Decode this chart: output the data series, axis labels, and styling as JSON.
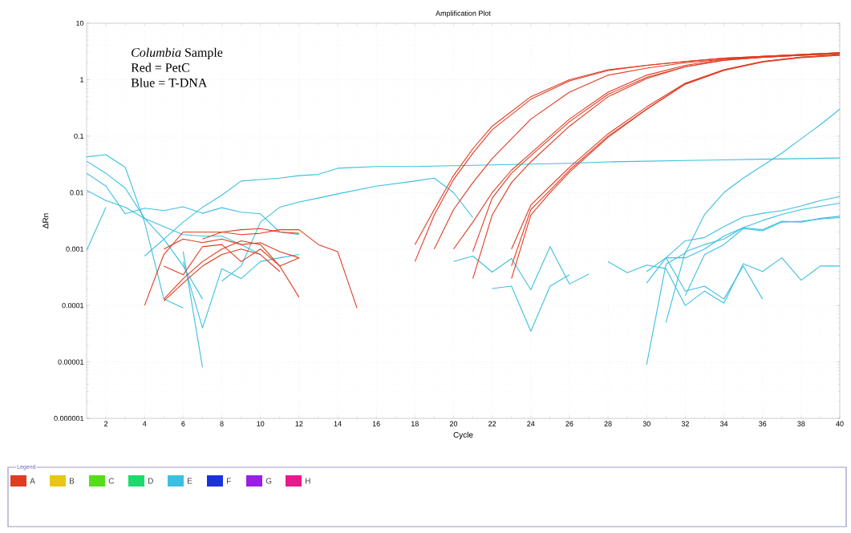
{
  "chart_data": {
    "type": "line",
    "title": "Amplification Plot",
    "xlabel": "Cycle",
    "ylabel": "ΔRn",
    "legend_title": "Legend",
    "annotations": [
      "*Columbia* Sample",
      "Red = PetC",
      "Blue = T-DNA"
    ],
    "xlim": [
      1,
      40
    ],
    "xticks": [
      2,
      4,
      6,
      8,
      10,
      12,
      14,
      16,
      18,
      20,
      22,
      24,
      26,
      28,
      30,
      32,
      34,
      36,
      38,
      40
    ],
    "ylim": [
      1e-06,
      10
    ],
    "yticks": [
      {
        "value": 1e-06,
        "label": "0.000001"
      },
      {
        "value": 1e-05,
        "label": "0.00001"
      },
      {
        "value": 0.0001,
        "label": "0.0001"
      },
      {
        "value": 0.001,
        "label": "0.001"
      },
      {
        "value": 0.01,
        "label": "0.01"
      },
      {
        "value": 0.1,
        "label": "0.1"
      },
      {
        "value": 1,
        "label": "1"
      },
      {
        "value": 10,
        "label": "10"
      }
    ],
    "log": "y",
    "grid": true,
    "legend": "bottom",
    "marker": "none",
    "line_style": "solid",
    "series": [
      {
        "name": "A",
        "color": "#e03c22",
        "x": [
          18,
          19,
          20,
          21,
          22,
          24,
          26,
          28,
          30,
          32,
          34,
          36,
          38,
          40
        ],
        "values": [
          0.0012,
          0.005,
          0.02,
          0.06,
          0.15,
          0.5,
          1.0,
          1.5,
          1.8,
          2.1,
          2.4,
          2.6,
          2.8,
          3.0
        ]
      },
      {
        "name": "B",
        "color": "#e6c619"
      },
      {
        "name": "C",
        "color": "#55dd1a"
      },
      {
        "name": "D",
        "color": "#1ed96e"
      },
      {
        "name": "E",
        "color": "#3cc0e0",
        "x": [
          1,
          2,
          3,
          4,
          5,
          6
        ],
        "values": [
          0.043,
          0.047,
          0.028,
          0.003,
          0.00013,
          9e-05
        ]
      },
      {
        "name": "F",
        "color": "#1a33d9"
      },
      {
        "name": "G",
        "color": "#9b1ee6"
      },
      {
        "name": "H",
        "color": "#e61a8a"
      },
      {
        "color": "#3cc0e0",
        "x": [
          1,
          2,
          3,
          4,
          5,
          6,
          7
        ],
        "values": [
          0.036,
          0.022,
          0.012,
          0.0035,
          0.0015,
          0.0005,
          0.00013
        ]
      },
      {
        "color": "#3cc0e0",
        "x": [
          1,
          2,
          3,
          4,
          5,
          6,
          7,
          8,
          9,
          10,
          11,
          12
        ],
        "values": [
          0.022,
          0.013,
          0.0042,
          0.0053,
          0.0048,
          0.0056,
          0.0043,
          0.0054,
          0.0045,
          0.0042,
          0.002,
          0.0018
        ]
      },
      {
        "color": "#3cc0e0",
        "x": [
          1,
          2,
          3,
          4,
          5,
          6,
          7,
          8,
          9,
          10
        ],
        "values": [
          0.011,
          0.0072,
          0.0055,
          0.0035,
          0.0025,
          0.0018,
          0.0017,
          0.0017,
          0.0012,
          0.0008
        ]
      },
      {
        "color": "#3cc0e0",
        "x": [
          1,
          2
        ],
        "values": [
          0.00095,
          0.0055
        ]
      },
      {
        "color": "#3cc0e0",
        "x": [
          4,
          5,
          6,
          7,
          8,
          9,
          10,
          11,
          12,
          13,
          14,
          16,
          18,
          20,
          22,
          24,
          26,
          28,
          30,
          32,
          34,
          36,
          38,
          40
        ],
        "values": [
          0.00075,
          0.0015,
          0.003,
          0.0055,
          0.009,
          0.016,
          0.017,
          0.018,
          0.02,
          0.021,
          0.027,
          0.029,
          0.029,
          0.03,
          0.031,
          0.032,
          0.033,
          0.035,
          0.036,
          0.037,
          0.038,
          0.039,
          0.04,
          0.041
        ]
      },
      {
        "color": "#3cc0e0",
        "x": [
          8,
          9,
          10,
          11,
          12,
          13,
          14,
          16,
          18,
          19,
          20,
          21
        ],
        "values": [
          0.00027,
          0.0005,
          0.003,
          0.0055,
          0.0068,
          0.008,
          0.0095,
          0.013,
          0.016,
          0.018,
          0.01,
          0.0036
        ]
      },
      {
        "color": "#3cc0e0",
        "x": [
          6,
          7
        ],
        "values": [
          0.0009,
          8e-06
        ]
      },
      {
        "color": "#3cc0e0",
        "x": [
          6,
          7,
          8,
          9,
          10,
          11,
          12
        ],
        "values": [
          0.0006,
          4e-05,
          0.00045,
          0.0003,
          0.0006,
          0.0007,
          0.0008
        ]
      },
      {
        "color": "#3cc0e0",
        "x": [
          20,
          21,
          22,
          23,
          24,
          25,
          26,
          27
        ],
        "values": [
          0.0006,
          0.00075,
          0.00039,
          0.00068,
          0.00019,
          0.0011,
          0.00024,
          0.00036
        ]
      },
      {
        "color": "#3cc0e0",
        "x": [
          22,
          23,
          24,
          25,
          26
        ],
        "values": [
          0.0002,
          0.00022,
          3.5e-05,
          0.00022,
          0.00035
        ]
      },
      {
        "color": "#3cc0e0",
        "x": [
          28,
          29,
          30,
          31,
          32,
          33,
          34,
          35,
          36,
          37,
          38,
          39,
          40
        ],
        "values": [
          0.0006,
          0.00038,
          0.00052,
          0.00045,
          0.0001,
          0.00018,
          0.00011,
          0.00055,
          0.0004,
          0.0007,
          0.00028,
          0.0005,
          0.0005
        ]
      },
      {
        "color": "#3cc0e0",
        "x": [
          31,
          32,
          33,
          34,
          35,
          36
        ],
        "values": [
          0.0007,
          0.00018,
          0.00022,
          0.00013,
          0.0005,
          0.00013
        ]
      },
      {
        "color": "#3cc0e0",
        "x": [
          30,
          31,
          32,
          33,
          34,
          35,
          36,
          37,
          38,
          39,
          40
        ],
        "values": [
          9e-06,
          0.00054,
          0.00085,
          0.0041,
          0.01,
          0.018,
          0.03,
          0.05,
          0.09,
          0.16,
          0.3
        ]
      },
      {
        "color": "#3cc0e0",
        "x": [
          30,
          31,
          32,
          33,
          34,
          35,
          36,
          37,
          38,
          39,
          40
        ],
        "values": [
          0.0004,
          0.0007,
          0.0014,
          0.0016,
          0.0025,
          0.0037,
          0.0043,
          0.0048,
          0.0058,
          0.0072,
          0.0085
        ]
      },
      {
        "color": "#3cc0e0",
        "x": [
          30,
          31,
          32,
          33,
          34,
          35,
          36,
          37,
          38,
          39,
          40
        ],
        "values": [
          0.00025,
          0.0007,
          0.0007,
          0.001,
          0.0017,
          0.0024,
          0.0032,
          0.0041,
          0.005,
          0.0057,
          0.0065
        ]
      },
      {
        "color": "#3cc0e0",
        "x": [
          31,
          32,
          33,
          34,
          35,
          36,
          37,
          38,
          39,
          40
        ],
        "values": [
          5e-05,
          0.0009,
          0.0012,
          0.0015,
          0.0024,
          0.0022,
          0.0031,
          0.003,
          0.0035,
          0.0038
        ]
      },
      {
        "color": "#3cc0e0",
        "x": [
          32,
          33,
          34,
          35,
          36,
          37,
          38,
          39,
          40
        ],
        "values": [
          0.00015,
          0.0008,
          0.0012,
          0.0023,
          0.0021,
          0.003,
          0.0031,
          0.0034,
          0.0036
        ]
      },
      {
        "color": "#e03c22",
        "x": [
          4,
          5,
          6,
          7,
          8,
          9,
          10,
          11,
          12
        ],
        "values": [
          0.0001,
          0.0008,
          0.002,
          0.002,
          0.002,
          0.0022,
          0.0023,
          0.002,
          0.0019
        ]
      },
      {
        "color": "#e03c22",
        "x": [
          7,
          8,
          9,
          10,
          11,
          12,
          13,
          14,
          15
        ],
        "values": [
          0.0015,
          0.002,
          0.0018,
          0.0019,
          0.0022,
          0.0022,
          0.0012,
          0.0009,
          9e-05
        ]
      },
      {
        "color": "#e03c22",
        "x": [
          5,
          6,
          7,
          8,
          9,
          10,
          11,
          12
        ],
        "values": [
          0.00013,
          0.0003,
          0.0006,
          0.001,
          0.0014,
          0.0012,
          0.0005,
          0.00014
        ]
      },
      {
        "color": "#e03c22",
        "x": [
          5,
          6,
          7,
          8,
          9,
          10,
          11
        ],
        "values": [
          0.00012,
          0.00025,
          0.0005,
          0.0008,
          0.001,
          0.0008,
          0.0004
        ]
      },
      {
        "color": "#e03c22",
        "x": [
          5,
          6,
          7,
          8,
          9,
          10,
          11,
          12
        ],
        "values": [
          0.0005,
          0.00035,
          0.0011,
          0.0012,
          0.0006,
          0.001,
          0.0005,
          0.0007
        ]
      },
      {
        "color": "#e03c22",
        "x": [
          5,
          6,
          7,
          8,
          9,
          10,
          11,
          12
        ],
        "values": [
          0.001,
          0.0015,
          0.0013,
          0.0015,
          0.0012,
          0.0013,
          0.0009,
          0.0007
        ]
      },
      {
        "color": "#e03c22",
        "x": [
          18,
          19,
          20,
          21,
          22,
          24,
          26,
          28,
          30,
          32,
          34,
          36,
          38,
          40
        ],
        "values": [
          0.0006,
          0.004,
          0.017,
          0.05,
          0.13,
          0.45,
          0.95,
          1.45,
          1.8,
          2.1,
          2.4,
          2.6,
          2.8,
          3.0
        ]
      },
      {
        "color": "#e03c22",
        "x": [
          19,
          20,
          21,
          22,
          24,
          26,
          28,
          30,
          32,
          34,
          36,
          38,
          40
        ],
        "values": [
          0.001,
          0.005,
          0.015,
          0.04,
          0.2,
          0.6,
          1.2,
          1.6,
          2.0,
          2.3,
          2.5,
          2.7,
          2.9
        ]
      },
      {
        "color": "#e03c22",
        "x": [
          20,
          21,
          22,
          23,
          24,
          26,
          28,
          30,
          32,
          34,
          36,
          38,
          40
        ],
        "values": [
          0.001,
          0.003,
          0.01,
          0.025,
          0.05,
          0.2,
          0.6,
          1.2,
          1.8,
          2.3,
          2.6,
          2.8,
          3.0
        ]
      },
      {
        "color": "#e03c22",
        "x": [
          21,
          22,
          23,
          24,
          26,
          28,
          30,
          32,
          34,
          36,
          38,
          40
        ],
        "values": [
          0.0009,
          0.008,
          0.022,
          0.045,
          0.18,
          0.55,
          1.1,
          1.7,
          2.2,
          2.5,
          2.7,
          2.9
        ]
      },
      {
        "color": "#e03c22",
        "x": [
          21,
          22,
          23,
          24,
          26,
          28,
          30,
          32,
          34,
          36,
          38,
          40
        ],
        "values": [
          0.0003,
          0.004,
          0.015,
          0.035,
          0.15,
          0.5,
          1.05,
          1.7,
          2.2,
          2.5,
          2.7,
          2.9
        ]
      },
      {
        "color": "#e03c22",
        "x": [
          23,
          24,
          25,
          26,
          28,
          30,
          32,
          34,
          36,
          38,
          40
        ],
        "values": [
          0.001,
          0.006,
          0.013,
          0.028,
          0.11,
          0.33,
          0.87,
          1.5,
          2.1,
          2.5,
          2.7
        ]
      },
      {
        "color": "#e03c22",
        "x": [
          23,
          24,
          25,
          26,
          28,
          30,
          32,
          34,
          36,
          38,
          40
        ],
        "values": [
          0.0005,
          0.005,
          0.011,
          0.025,
          0.1,
          0.3,
          0.85,
          1.5,
          2.1,
          2.5,
          2.8
        ]
      },
      {
        "color": "#e03c22",
        "x": [
          23,
          24,
          25,
          26,
          28,
          30,
          32,
          34,
          36,
          38,
          40
        ],
        "values": [
          0.0003,
          0.004,
          0.01,
          0.023,
          0.095,
          0.3,
          0.83,
          1.45,
          2.05,
          2.45,
          2.7
        ]
      }
    ]
  }
}
